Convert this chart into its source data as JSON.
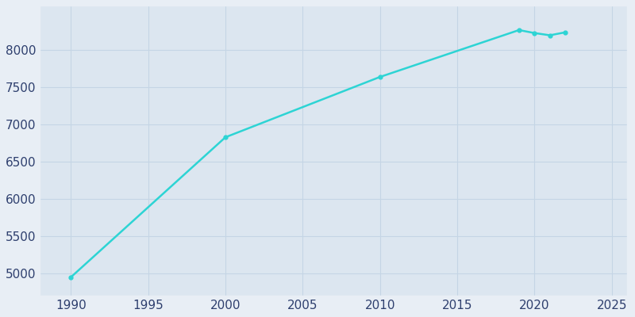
{
  "years": [
    1990,
    2000,
    2010,
    2019,
    2020,
    2021,
    2022
  ],
  "population": [
    4950,
    6830,
    7640,
    8270,
    8230,
    8200,
    8240
  ],
  "line_color": "#2dd4d4",
  "marker": "o",
  "marker_size": 3.5,
  "line_width": 1.8,
  "background_color": "#e8eef5",
  "plot_bg_color": "#dce6f0",
  "xlim": [
    1988,
    2026
  ],
  "ylim": [
    4700,
    8600
  ],
  "xticks": [
    1990,
    1995,
    2000,
    2005,
    2010,
    2015,
    2020,
    2025
  ],
  "yticks": [
    5000,
    5500,
    6000,
    6500,
    7000,
    7500,
    8000
  ],
  "tick_color": "#2e3f6e",
  "spine_color": "#c5d5e5",
  "grid_color": "#c5d5e5",
  "title": ""
}
